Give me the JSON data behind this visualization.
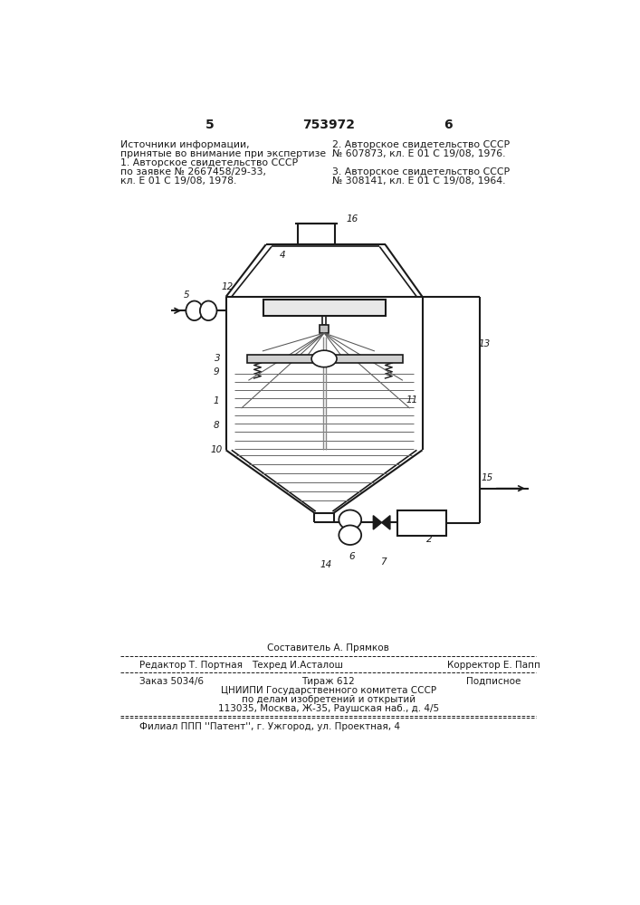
{
  "page_number_left": "5",
  "page_number_center": "753972",
  "page_number_right": "6",
  "text_left_col": [
    "Источники информации,",
    "принятые во внимание при экспертизе",
    "1. Авторское свидетельство СССР",
    "по заявке № 2667458/29-33,",
    "кл. Е 01 С 19/08, 1978."
  ],
  "text_right_col": [
    "2. Авторское свидетельство СССР",
    "№ 607873, кл. Е 01 С 19/08, 1976.",
    "",
    "3. Авторское свидетельство СССР",
    "№ 308141, кл. Е 01 С 19/08, 1964."
  ],
  "footer_composer": "Составитель А. Прямков",
  "footer_editor": "Редактор Т. Портная",
  "footer_techred": "Техред И.Асталош",
  "footer_corrector": "Корректор Е. Папп",
  "footer_order": "Заказ 5034/6",
  "footer_tirazh": "Тираж 612",
  "footer_podpisnoe": "Подписное",
  "footer_org1": "ЦНИИПИ Государственного комитета СССР",
  "footer_org2": "по делам изобретений и открытий",
  "footer_org3": "113035, Москва, Ж-35, Раушская наб., д. 4/5",
  "footer_filial": "Филиал ППП ''Патент'', г. Ужгород, ул. Проектная, 4",
  "bg_color": "#ffffff",
  "text_color": "#1a1a1a"
}
